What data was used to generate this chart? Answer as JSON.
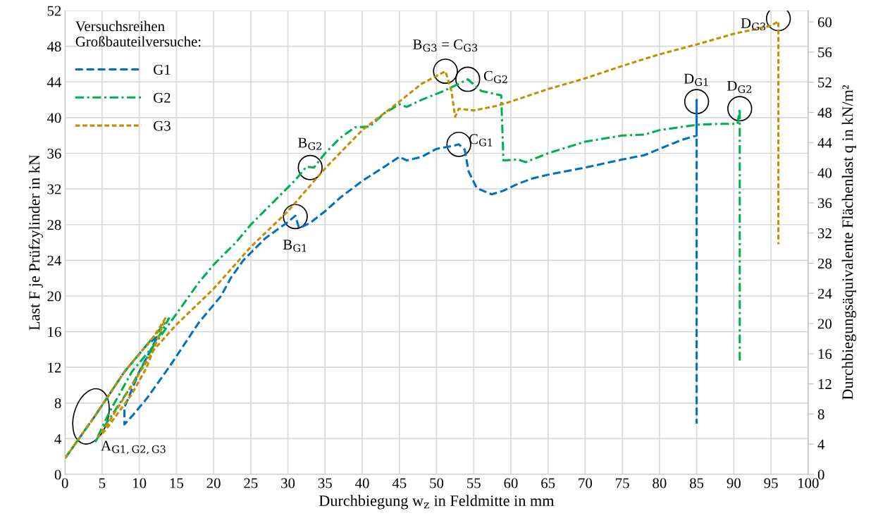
{
  "chart_data": {
    "type": "line",
    "xlabel": "Durchbiegung w$_{z}$ in Feldmitte in mm",
    "ylabel": "Last F je Prüfzylinder in kN",
    "y2label": "Durchbiegungsäquivalente Flächenlast q in kN/m²",
    "legend_title": "Versuchsreihen\nGroßbauteilversuche:",
    "legend": "top left",
    "grid": true,
    "xlim": [
      0,
      100
    ],
    "xticks": [
      0,
      5,
      10,
      15,
      20,
      25,
      30,
      35,
      40,
      45,
      50,
      55,
      60,
      65,
      70,
      75,
      80,
      85,
      90,
      95,
      100
    ],
    "ylim": [
      0,
      52
    ],
    "yticks": [
      0,
      4,
      8,
      12,
      16,
      20,
      24,
      28,
      32,
      36,
      40,
      44,
      48,
      52
    ],
    "y2lim": [
      0,
      61.5
    ],
    "y2ticks": [
      0,
      4,
      8,
      12,
      16,
      20,
      24,
      28,
      32,
      36,
      40,
      44,
      48,
      52,
      56,
      60
    ],
    "series": [
      {
        "name": "G1",
        "color": "#0070c0",
        "line_style": "dashed",
        "x": [
          0,
          4,
          8,
          11,
          12.5,
          10,
          8,
          8,
          9,
          11,
          14,
          18,
          21,
          22.3,
          24,
          27,
          30,
          31,
          31.5,
          33,
          35,
          37,
          40,
          43,
          45,
          46,
          48,
          50,
          52,
          53,
          53.8,
          54.3,
          55.4,
          57.4,
          59,
          61,
          63,
          65,
          70,
          75,
          78,
          80,
          83,
          85,
          85,
          85
        ],
        "values": [
          1.8,
          6.5,
          11.5,
          14.5,
          15.5,
          11.5,
          7.5,
          5.6,
          6.5,
          8.5,
          12,
          17,
          20,
          22,
          24,
          26.5,
          28.3,
          29,
          27.6,
          28.2,
          29.5,
          31,
          32.9,
          34.5,
          35.6,
          35.2,
          35.6,
          36.5,
          36.8,
          37,
          36.4,
          34,
          32.1,
          31.4,
          31.8,
          32.6,
          33.2,
          33.6,
          34.4,
          35.3,
          35.8,
          36.5,
          37.5,
          38,
          42,
          5.7
        ]
      },
      {
        "name": "G2",
        "color": "#00b050",
        "line_style": "dashdot",
        "x": [
          0,
          4,
          8,
          12,
          14,
          11,
          9,
          5,
          4,
          6,
          9,
          12,
          15,
          18,
          20,
          23,
          25,
          28,
          31,
          32.5,
          33.5,
          35,
          37,
          39,
          41,
          43,
          45,
          46,
          48,
          51,
          53,
          54.2,
          56,
          58.7,
          59,
          61,
          62,
          65,
          70,
          75,
          78,
          80,
          85,
          88,
          90.5,
          90.8,
          90.8
        ],
        "values": [
          1.8,
          6.5,
          11.5,
          15.5,
          17.5,
          13,
          10,
          5,
          3.5,
          7,
          11.5,
          14.5,
          18,
          21.5,
          23.5,
          26,
          28,
          30.5,
          33,
          34.5,
          34.4,
          36,
          37.7,
          38.9,
          39,
          40.5,
          41.5,
          41.2,
          42,
          43,
          43.8,
          44.3,
          43,
          42.5,
          35.2,
          35.3,
          35,
          36,
          37.3,
          38,
          38.1,
          38.6,
          39.2,
          39.3,
          39.3,
          41,
          12.5
        ]
      },
      {
        "name": "G3",
        "color": "#c09000",
        "line_style": "dotted",
        "x": [
          0,
          4,
          8,
          12,
          13.5,
          11,
          9,
          5.5,
          4.5,
          6,
          9,
          12,
          15,
          20,
          25,
          30,
          35,
          40,
          45,
          48,
          51.2,
          52,
          52.5,
          53,
          55,
          58,
          60,
          65,
          70,
          75,
          80,
          85,
          90,
          95,
          96,
          96
        ],
        "values": [
          1.8,
          6.5,
          11.5,
          15.5,
          17.5,
          12,
          9,
          5,
          4.2,
          6,
          10,
          14,
          16.8,
          20.8,
          25.5,
          29.5,
          34.3,
          38.6,
          41.8,
          43.8,
          45.2,
          43,
          40.1,
          41,
          40.8,
          41.3,
          41.8,
          43.2,
          44.4,
          45.8,
          47.1,
          48.2,
          49.4,
          50.3,
          50.8,
          25.8
        ]
      }
    ],
    "annotations": [
      {
        "text": "A$_{G1,G2,G3}$",
        "x": 3.5,
        "y": 6.5
      },
      {
        "text": "B$_{G1}$",
        "x": 31,
        "y": 28.9
      },
      {
        "text": "B$_{G2}$",
        "x": 33,
        "y": 34.4
      },
      {
        "text": "B$_{G3}$ = C$_{G3}$",
        "x": 51.2,
        "y": 45.2
      },
      {
        "text": "C$_{G2}$",
        "x": 54.2,
        "y": 44.3
      },
      {
        "text": "C$_{G1}$",
        "x": 53,
        "y": 37
      },
      {
        "text": "D$_{G1}$",
        "x": 85,
        "y": 41.8
      },
      {
        "text": "D$_{G2}$",
        "x": 90.8,
        "y": 41
      },
      {
        "text": "D$_{G3}$",
        "x": 96,
        "y": 51.1
      }
    ]
  }
}
